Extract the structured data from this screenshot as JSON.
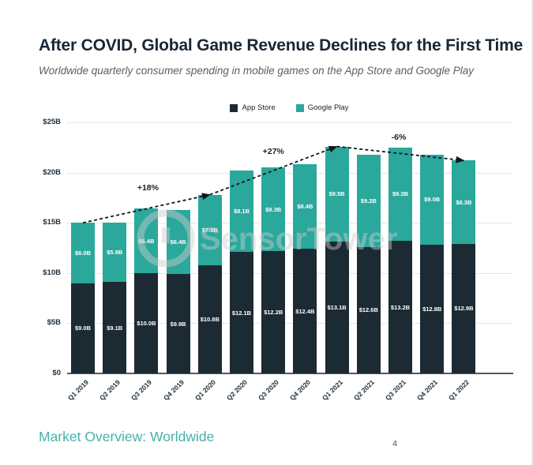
{
  "header": {
    "title": "After COVID, Global Game Revenue Declines for the First Time",
    "subtitle": "Worldwide quarterly consumer spending in mobile games on the App Store and Google Play"
  },
  "legend": {
    "items": [
      {
        "label": "App Store",
        "color": "#1c2a33"
      },
      {
        "label": "Google Play",
        "color": "#2ba89c"
      }
    ]
  },
  "colors": {
    "app_store_dark": "#1c2a33",
    "google_play_teal": "#2ba89c",
    "footer_teal": "#47b2a8",
    "title_navy": "#1a2633"
  },
  "watermark": {
    "text": "SensorTower",
    "logo": "sensor-tower-ring-logo"
  },
  "chart_data": {
    "type": "bar",
    "stacked": true,
    "title": "After COVID, Global Game Revenue Declines for the First Time",
    "subtitle": "Worldwide quarterly consumer spending in mobile games on the App Store and Google Play",
    "unit": "USD billions",
    "categories": [
      "Q1 2019",
      "Q2 2019",
      "Q3 2019",
      "Q4 2019",
      "Q1 2020",
      "Q2 2020",
      "Q3 2020",
      "Q4 2020",
      "Q1 2021",
      "Q2 2021",
      "Q3 2021",
      "Q4 2021",
      "Q1 2022"
    ],
    "series": [
      {
        "name": "App Store",
        "color": "#1c2a33",
        "values": [
          9.0,
          9.1,
          10.0,
          9.9,
          10.8,
          12.1,
          12.2,
          12.4,
          13.1,
          12.6,
          13.2,
          12.8,
          12.9
        ],
        "labels": [
          "$9.0B",
          "$9.1B",
          "$10.0B",
          "$9.9B",
          "$10.8B",
          "$12.1B",
          "$12.2B",
          "$12.4B",
          "$13.1B",
          "$12.6B",
          "$13.2B",
          "$12.8B",
          "$12.9B"
        ]
      },
      {
        "name": "Google Play",
        "color": "#2ba89c",
        "values": [
          6.0,
          5.9,
          6.4,
          6.4,
          7.0,
          8.1,
          8.3,
          8.4,
          9.5,
          9.2,
          9.3,
          9.0,
          8.3
        ],
        "labels": [
          "$6.0B",
          "$5.9B",
          "$6.4B",
          "$6.4B",
          "$7.0B",
          "$8.1B",
          "$8.3B",
          "$8.4B",
          "$9.5B",
          "$9.2B",
          "$9.3B",
          "$9.0B",
          "$8.3B"
        ]
      }
    ],
    "totals": [
      15.0,
      15.0,
      16.4,
      16.3,
      17.8,
      20.2,
      20.5,
      20.8,
      22.6,
      21.8,
      22.5,
      21.8,
      21.2
    ],
    "ylim": [
      0,
      25
    ],
    "yticks": [
      {
        "value": 0,
        "label": "$0"
      },
      {
        "value": 5,
        "label": "$5B"
      },
      {
        "value": 10,
        "label": "$10B"
      },
      {
        "value": 15,
        "label": "$15B"
      },
      {
        "value": 20,
        "label": "$20B"
      },
      {
        "value": 25,
        "label": "$25B"
      }
    ],
    "grid": "dotted-horizontal",
    "legend_position": "top",
    "trend": {
      "description": "dashed year-over-year arrow connecting Q1 bar tops",
      "indices": [
        0,
        4,
        8,
        12
      ],
      "annotations": [
        {
          "text": "+18%",
          "dx": 2,
          "dy": -26
        },
        {
          "text": "+27%",
          "dx": 0,
          "dy": -24
        },
        {
          "text": "-6%",
          "dx": -2,
          "dy": -20
        }
      ]
    }
  },
  "footer": {
    "label": "Market Overview: Worldwide",
    "page_number": "4"
  }
}
